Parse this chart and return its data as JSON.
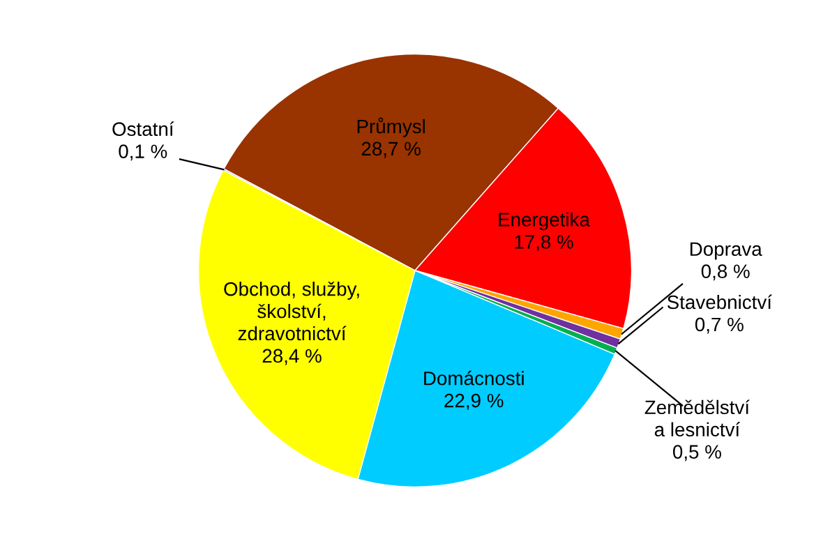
{
  "chart_data": {
    "type": "pie",
    "categories": [
      "Průmysl",
      "Energetika",
      "Doprava",
      "Stavebnictví",
      "Zemědělství\na lesnictví",
      "Domácnosti",
      "Obchod, služby,\nškolství,\nzdravotnictví",
      "Ostatní"
    ],
    "values": [
      28.7,
      17.8,
      0.8,
      0.7,
      0.5,
      22.9,
      28.4,
      0.1
    ],
    "value_labels": [
      "28,7 %",
      "17,8 %",
      "0,8 %",
      "0,7 %",
      "0,5 %",
      "22,9 %",
      "28,4 %",
      "0,1 %"
    ],
    "colors": [
      "#993300",
      "#ff0000",
      "#ffa500",
      "#7030a0",
      "#00b050",
      "#00ccff",
      "#ffff00",
      "#9999ff"
    ],
    "legend": false
  }
}
